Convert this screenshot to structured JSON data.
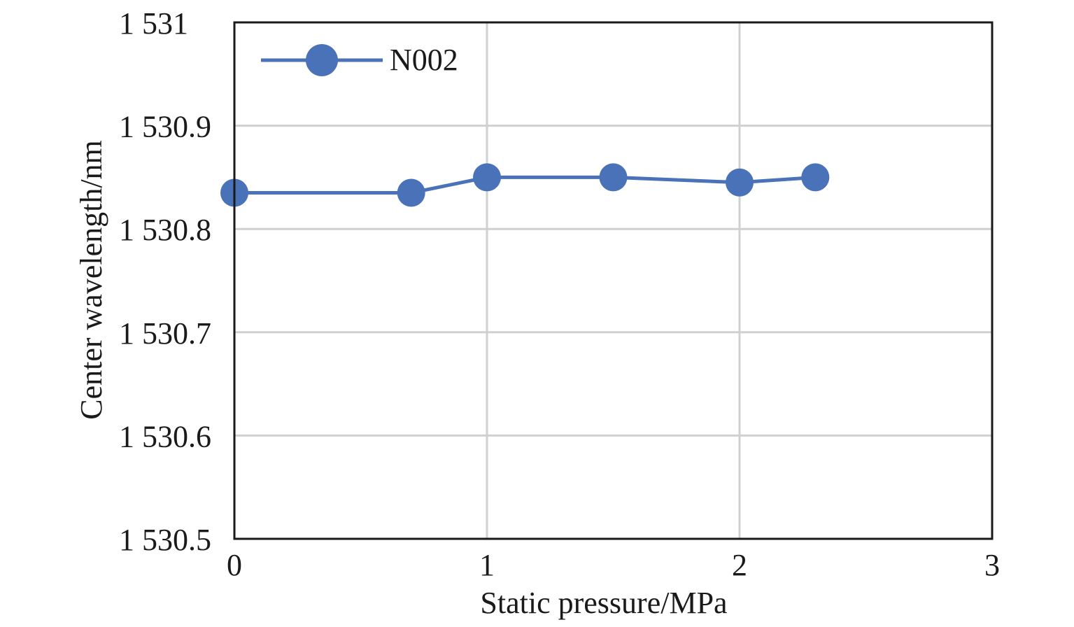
{
  "chart_data": {
    "type": "line",
    "xlabel": "Static pressure/MPa",
    "ylabel": "Center wavelength/nm",
    "xlim": [
      0,
      3
    ],
    "ylim": [
      1530.5,
      1531
    ],
    "grid": true,
    "legend_position": "top-left",
    "x_ticks": [
      {
        "value": 0,
        "label": "0"
      },
      {
        "value": 1,
        "label": "1"
      },
      {
        "value": 2,
        "label": "2"
      },
      {
        "value": 3,
        "label": "3"
      }
    ],
    "y_ticks": [
      {
        "value": 1530.5,
        "label": "1 530.5"
      },
      {
        "value": 1530.6,
        "label": "1 530.6"
      },
      {
        "value": 1530.7,
        "label": "1 530.7"
      },
      {
        "value": 1530.8,
        "label": "1 530.8"
      },
      {
        "value": 1530.9,
        "label": "1 530.9"
      },
      {
        "value": 1531,
        "label": "1 531"
      }
    ],
    "series": [
      {
        "name": "N002",
        "color": "#4a72b8",
        "x": [
          0,
          0.7,
          1.0,
          1.5,
          2.0,
          2.3
        ],
        "values": [
          1530.835,
          1530.835,
          1530.85,
          1530.85,
          1530.845,
          1530.85
        ]
      }
    ]
  }
}
